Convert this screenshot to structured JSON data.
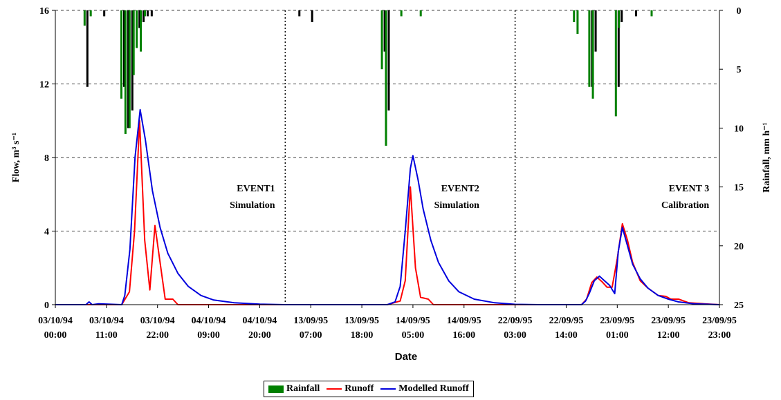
{
  "chart_data": {
    "type": "line",
    "title": "",
    "xlabel": "Date",
    "ylabel": "Flow, m³ s⁻¹",
    "y2label": "Rainfall, mm h⁻¹",
    "ylim": [
      0,
      16
    ],
    "y2lim": [
      25,
      0
    ],
    "yticks": [
      "0",
      "4",
      "8",
      "12",
      "16"
    ],
    "y2ticks": [
      "0",
      "5",
      "10",
      "15",
      "20",
      "25"
    ],
    "x_labels": [
      [
        "03/10/94",
        "00:00"
      ],
      [
        "03/10/94",
        "11:00"
      ],
      [
        "03/10/94",
        "22:00"
      ],
      [
        "04/10/94",
        "09:00"
      ],
      [
        "04/10/94",
        "20:00"
      ],
      [
        "13/09/95",
        "07:00"
      ],
      [
        "13/09/95",
        "18:00"
      ],
      [
        "14/09/95",
        "05:00"
      ],
      [
        "14/09/95",
        "16:00"
      ],
      [
        "22/09/95",
        "03:00"
      ],
      [
        "22/09/95",
        "14:00"
      ],
      [
        "23/09/95",
        "01:00"
      ],
      [
        "23/09/95",
        "12:00"
      ],
      [
        "23/09/95",
        "23:00"
      ]
    ],
    "grid": "horizontal dashed",
    "event_separators_at_label_index": [
      4.5,
      9
    ],
    "annotations": [
      {
        "lines": [
          "EVENT1",
          "Simulation"
        ],
        "at_label_index": 4.3
      },
      {
        "lines": [
          "EVENT2",
          "Simulation"
        ],
        "at_label_index": 8.3
      },
      {
        "lines": [
          "EVENT 3",
          "Calibration"
        ],
        "at_label_index": 12.8
      }
    ],
    "series": [
      {
        "name": "Runoff",
        "color": "#ff0000",
        "points": [
          [
            0,
            0
          ],
          [
            0.5,
            0
          ],
          [
            1,
            0
          ],
          [
            1.3,
            0
          ],
          [
            1.45,
            0.7
          ],
          [
            1.55,
            4
          ],
          [
            1.65,
            10
          ],
          [
            1.75,
            3.5
          ],
          [
            1.85,
            0.8
          ],
          [
            1.95,
            4.3
          ],
          [
            2.05,
            2.3
          ],
          [
            2.15,
            0.3
          ],
          [
            2.3,
            0.3
          ],
          [
            2.4,
            0
          ],
          [
            3,
            0
          ],
          [
            4.5,
            0
          ],
          [
            5,
            0
          ],
          [
            6.5,
            0
          ],
          [
            6.75,
            0.2
          ],
          [
            6.85,
            1.3
          ],
          [
            6.95,
            6.4
          ],
          [
            7.05,
            2
          ],
          [
            7.15,
            0.4
          ],
          [
            7.3,
            0.3
          ],
          [
            7.4,
            0
          ],
          [
            8,
            0
          ],
          [
            9,
            0
          ],
          [
            10.3,
            0
          ],
          [
            10.4,
            0.3
          ],
          [
            10.5,
            1.2
          ],
          [
            10.6,
            1.5
          ],
          [
            10.7,
            1.25
          ],
          [
            10.8,
            0.95
          ],
          [
            10.9,
            0.95
          ],
          [
            11,
            2.5
          ],
          [
            11.1,
            4.4
          ],
          [
            11.2,
            3.5
          ],
          [
            11.3,
            2.3
          ],
          [
            11.45,
            1.3
          ],
          [
            11.6,
            0.9
          ],
          [
            11.8,
            0.5
          ],
          [
            11.95,
            0.45
          ],
          [
            12.05,
            0.3
          ],
          [
            12.2,
            0.3
          ],
          [
            12.4,
            0.1
          ],
          [
            12.7,
            0.05
          ],
          [
            13,
            0
          ]
        ]
      },
      {
        "name": "Modelled Runoff",
        "color": "#0000dd",
        "points": [
          [
            0,
            0
          ],
          [
            0.6,
            0
          ],
          [
            0.66,
            0.15
          ],
          [
            0.72,
            0
          ],
          [
            0.85,
            0.05
          ],
          [
            1.3,
            0
          ],
          [
            1.36,
            0.5
          ],
          [
            1.46,
            3
          ],
          [
            1.56,
            8
          ],
          [
            1.66,
            10.6
          ],
          [
            1.76,
            9
          ],
          [
            1.9,
            6.2
          ],
          [
            2.05,
            4.2
          ],
          [
            2.2,
            2.8
          ],
          [
            2.4,
            1.7
          ],
          [
            2.6,
            1
          ],
          [
            2.85,
            0.5
          ],
          [
            3.1,
            0.25
          ],
          [
            3.5,
            0.1
          ],
          [
            4,
            0.03
          ],
          [
            4.5,
            0
          ],
          [
            5,
            0
          ],
          [
            6.5,
            0
          ],
          [
            6.65,
            0.15
          ],
          [
            6.75,
            1
          ],
          [
            6.85,
            4
          ],
          [
            6.95,
            7.4
          ],
          [
            7,
            8.1
          ],
          [
            7.1,
            6.8
          ],
          [
            7.2,
            5.2
          ],
          [
            7.35,
            3.5
          ],
          [
            7.5,
            2.3
          ],
          [
            7.7,
            1.3
          ],
          [
            7.9,
            0.7
          ],
          [
            8.2,
            0.3
          ],
          [
            8.6,
            0.1
          ],
          [
            9,
            0.02
          ],
          [
            9.5,
            0
          ],
          [
            10.3,
            0
          ],
          [
            10.38,
            0.2
          ],
          [
            10.45,
            0.6
          ],
          [
            10.55,
            1.3
          ],
          [
            10.65,
            1.55
          ],
          [
            10.75,
            1.3
          ],
          [
            10.85,
            1.05
          ],
          [
            10.95,
            0.6
          ],
          [
            11.02,
            2.9
          ],
          [
            11.1,
            4.2
          ],
          [
            11.2,
            3.2
          ],
          [
            11.3,
            2.2
          ],
          [
            11.45,
            1.4
          ],
          [
            11.6,
            0.9
          ],
          [
            11.8,
            0.5
          ],
          [
            12,
            0.3
          ],
          [
            12.2,
            0.15
          ],
          [
            12.5,
            0.05
          ],
          [
            13,
            0
          ]
        ]
      }
    ],
    "rainfall": {
      "name": "Rainfall",
      "color": "#008000",
      "bars": [
        [
          0.6,
          1.3,
          6.5
        ],
        [
          0.72,
          0.5,
          0
        ],
        [
          0.93,
          0,
          0.5
        ],
        [
          1.32,
          7.5,
          6.5
        ],
        [
          1.4,
          10.5,
          10
        ],
        [
          1.48,
          10,
          8.5
        ],
        [
          1.56,
          5.5,
          0
        ],
        [
          1.62,
          3.2,
          1.5
        ],
        [
          1.7,
          3.5,
          1
        ],
        [
          1.78,
          0.5,
          0.5
        ],
        [
          1.86,
          0,
          0.5
        ],
        [
          4.75,
          0,
          0.5
        ],
        [
          5.0,
          0,
          1
        ],
        [
          6.42,
          5,
          3.5
        ],
        [
          6.5,
          11.5,
          8.5
        ],
        [
          6.8,
          0.5,
          0
        ],
        [
          7.18,
          0.5,
          0
        ],
        [
          10.18,
          1,
          0
        ],
        [
          10.25,
          2,
          0
        ],
        [
          10.48,
          6.5,
          6.5
        ],
        [
          10.55,
          7.5,
          3.5
        ],
        [
          11.0,
          9,
          6.5
        ],
        [
          11.06,
          1.5,
          1
        ],
        [
          11.34,
          0,
          0.5
        ],
        [
          11.7,
          0.5,
          0
        ]
      ]
    }
  },
  "legend": {
    "rainfall_label": "Rainfall",
    "runoff_label": "Runoff",
    "modelled_label": "Modelled Runoff"
  }
}
